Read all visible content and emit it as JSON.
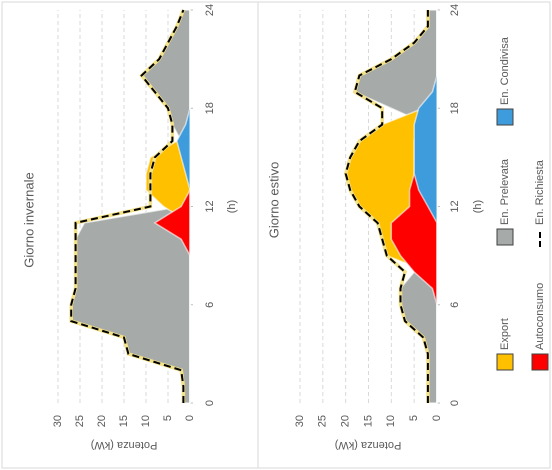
{
  "chart_data": [
    {
      "type": "area",
      "title": "Giorno invernale",
      "xlabel": "(h)",
      "ylabel": "Potenza (kW)",
      "x": [
        0,
        1,
        2,
        3,
        4,
        5,
        6,
        7,
        8,
        9,
        10,
        11,
        12,
        13,
        14,
        15,
        16,
        17,
        18,
        19,
        20,
        21,
        22,
        23,
        24
      ],
      "xlim": [
        0,
        24
      ],
      "xticks": [
        0,
        6,
        12,
        18,
        24
      ],
      "ylim": [
        0,
        30
      ],
      "yticks": [
        0,
        5,
        10,
        15,
        20,
        25,
        30
      ],
      "grid": true,
      "series": [
        {
          "name": "En. Prelevata",
          "color": "#a6aaa9",
          "values": [
            1.5,
            1.5,
            2,
            14,
            15,
            27,
            27,
            26,
            26,
            26,
            26,
            24,
            2,
            1,
            1,
            1,
            2,
            4,
            5,
            8,
            11,
            7,
            5,
            3,
            1.5
          ]
        },
        {
          "name": "Export",
          "color": "#ffc000",
          "values": [
            0,
            0,
            0,
            0,
            0,
            0,
            0,
            0,
            0,
            0,
            0,
            0,
            6,
            10,
            10,
            9,
            3,
            0,
            0,
            0,
            0,
            0,
            0,
            0,
            0
          ]
        },
        {
          "name": "Autoconsumo",
          "color": "#ff0000",
          "values": [
            0,
            0,
            0,
            0,
            0,
            0,
            0,
            0,
            0,
            0,
            2,
            8,
            2,
            0,
            0,
            0,
            0,
            0,
            0,
            0,
            0,
            0,
            0,
            0,
            0
          ]
        },
        {
          "name": "En. Condivisa",
          "color": "#3e9bdc",
          "values": [
            0,
            0,
            0,
            0,
            0,
            0,
            0,
            0,
            0,
            0,
            0,
            0,
            0,
            0,
            1,
            2,
            3,
            1,
            0,
            0,
            0,
            0,
            0,
            0,
            0
          ]
        },
        {
          "name": "En. Richiesta",
          "color": "#000000",
          "style": "dashed",
          "values": [
            1.5,
            1.5,
            2,
            14,
            15,
            27,
            27,
            26,
            26,
            26,
            26,
            26,
            9,
            9,
            9,
            8,
            4,
            4,
            5,
            8,
            11,
            7,
            5,
            3,
            1.5
          ]
        }
      ]
    },
    {
      "type": "area",
      "title": "Giorno estivo",
      "xlabel": "(h)",
      "ylabel": "Potenza (kW)",
      "x": [
        0,
        1,
        2,
        3,
        4,
        5,
        6,
        7,
        8,
        9,
        10,
        11,
        12,
        13,
        14,
        15,
        16,
        17,
        18,
        19,
        20,
        21,
        22,
        23,
        24
      ],
      "xlim": [
        0,
        24
      ],
      "xticks": [
        0,
        6,
        12,
        18,
        24
      ],
      "ylim": [
        0,
        30
      ],
      "yticks": [
        0,
        5,
        10,
        15,
        20,
        25,
        30
      ],
      "grid": true,
      "series": [
        {
          "name": "En. Prelevata",
          "color": "#a6aaa9",
          "values": [
            2,
            2,
            2,
            2,
            3,
            7,
            8,
            8,
            5,
            2,
            1,
            1,
            1,
            1,
            1,
            1,
            1,
            2,
            10,
            18,
            17,
            10,
            5,
            2,
            2
          ]
        },
        {
          "name": "Export",
          "color": "#ffc000",
          "values": [
            0,
            0,
            0,
            0,
            0,
            0,
            0,
            0,
            2,
            11,
            12,
            13,
            17,
            19,
            20,
            19,
            17,
            12,
            3,
            0,
            0,
            0,
            0,
            0,
            0
          ]
        },
        {
          "name": "Autoconsumo",
          "color": "#ff0000",
          "values": [
            0,
            0,
            0,
            0,
            0,
            0,
            0,
            1,
            5,
            8,
            10,
            10,
            6,
            6,
            5,
            5,
            5,
            4,
            3,
            0,
            0,
            0,
            0,
            0,
            0
          ]
        },
        {
          "name": "En. Condivisa",
          "color": "#3e9bdc",
          "values": [
            0,
            0,
            0,
            0,
            0,
            0,
            0,
            0,
            0,
            0,
            0,
            0,
            2,
            4,
            5,
            5,
            5,
            5,
            4,
            1,
            0,
            0,
            0,
            0,
            0
          ]
        },
        {
          "name": "En. Richiesta",
          "color": "#000000",
          "style": "dashed",
          "values": [
            2,
            2,
            2,
            2,
            3,
            7,
            8,
            8,
            7,
            11,
            12,
            13,
            17,
            19,
            20,
            19,
            17,
            12,
            12,
            18,
            17,
            10,
            5,
            2,
            2
          ]
        }
      ]
    }
  ]
}
